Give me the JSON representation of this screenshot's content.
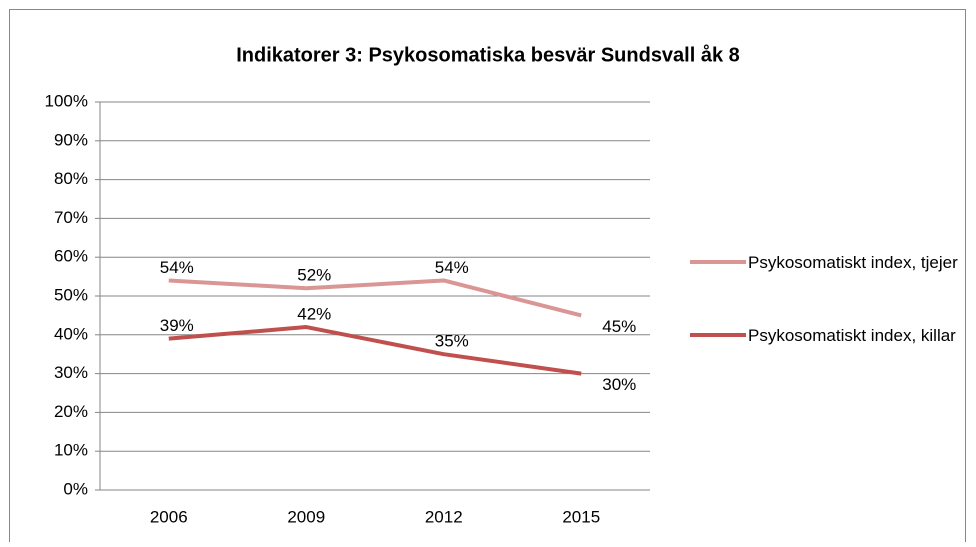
{
  "chart_data": {
    "type": "line",
    "title": "Indikatorer 3: Psykosomatiska besvär Sundsvall åk 8",
    "categories": [
      "2006",
      "2009",
      "2012",
      "2015"
    ],
    "series": [
      {
        "name": "Psykosomatiskt index, tjejer",
        "color": "#d99694",
        "values": [
          54,
          52,
          54,
          45
        ],
        "value_labels": [
          "54%",
          "52%",
          "54%",
          "45%"
        ]
      },
      {
        "name": "Psykosomatiskt index, killar",
        "color": "#c0504d",
        "values": [
          39,
          42,
          35,
          30
        ],
        "value_labels": [
          "39%",
          "42%",
          "35%",
          "30%"
        ]
      }
    ],
    "ylim": [
      0,
      100
    ],
    "yticks": [
      {
        "value": 0,
        "label": "0%"
      },
      {
        "value": 10,
        "label": "10%"
      },
      {
        "value": 20,
        "label": "20%"
      },
      {
        "value": 30,
        "label": "30%"
      },
      {
        "value": 40,
        "label": "40%"
      },
      {
        "value": 50,
        "label": "50%"
      },
      {
        "value": 60,
        "label": "60%"
      },
      {
        "value": 70,
        "label": "70%"
      },
      {
        "value": 80,
        "label": "80%"
      },
      {
        "value": 90,
        "label": "90%"
      },
      {
        "value": 100,
        "label": "100%"
      }
    ],
    "grid": true,
    "legend": "right"
  }
}
